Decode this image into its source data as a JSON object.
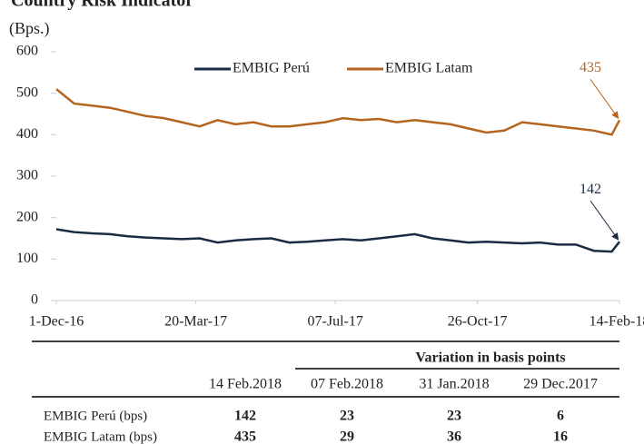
{
  "chart_data": {
    "type": "line",
    "title": "Country Risk Indicator",
    "subtitle": "(Bps.)",
    "x": [
      "2016-12-01",
      "2016-12-15",
      "2016-12-29",
      "2017-01-12",
      "2017-01-26",
      "2017-02-09",
      "2017-02-23",
      "2017-03-09",
      "2017-03-23",
      "2017-04-06",
      "2017-04-20",
      "2017-05-04",
      "2017-05-18",
      "2017-06-01",
      "2017-06-15",
      "2017-06-29",
      "2017-07-13",
      "2017-07-27",
      "2017-08-10",
      "2017-08-24",
      "2017-09-07",
      "2017-09-21",
      "2017-10-05",
      "2017-10-19",
      "2017-11-02",
      "2017-11-16",
      "2017-11-30",
      "2017-12-14",
      "2017-12-28",
      "2018-01-11",
      "2018-01-25",
      "2018-02-08",
      "2018-02-14"
    ],
    "series": [
      {
        "name": "EMBIG Perú",
        "color": "#1a2b44",
        "values": [
          172,
          165,
          162,
          160,
          155,
          152,
          150,
          148,
          150,
          140,
          145,
          148,
          150,
          140,
          142,
          145,
          148,
          145,
          150,
          155,
          160,
          150,
          145,
          140,
          142,
          140,
          138,
          140,
          135,
          135,
          120,
          118,
          142
        ]
      },
      {
        "name": "EMBIG Latam",
        "color": "#b5651d",
        "values": [
          510,
          475,
          470,
          465,
          455,
          445,
          440,
          430,
          420,
          435,
          425,
          430,
          420,
          420,
          425,
          430,
          440,
          435,
          438,
          430,
          435,
          430,
          425,
          415,
          405,
          410,
          430,
          425,
          420,
          415,
          410,
          400,
          435
        ]
      }
    ],
    "annotations": [
      {
        "text": "142",
        "series": 0
      },
      {
        "text": "435",
        "series": 1
      }
    ],
    "xlim": [
      "2016-12-01",
      "2018-02-14"
    ],
    "xticks": [
      {
        "value": "2016-12-01",
        "label": "1-Dec-16"
      },
      {
        "value": "2017-03-20",
        "label": "20-Mar-17"
      },
      {
        "value": "2017-07-07",
        "label": "07-Jul-17"
      },
      {
        "value": "2017-10-26",
        "label": "26-Oct-17"
      },
      {
        "value": "2018-02-14",
        "label": "14-Feb-18"
      }
    ],
    "ylim": [
      0,
      600
    ],
    "yticks": [
      0,
      100,
      200,
      300,
      400,
      500,
      600
    ],
    "legend": "top"
  },
  "table": {
    "header": "Variation in basis points",
    "columns": [
      "14 Feb.2018",
      "07 Feb.2018",
      "31 Jan.2018",
      "29 Dec.2017"
    ],
    "rows": [
      {
        "label": "EMBIG Perú (bps)",
        "values": [
          142,
          23,
          23,
          6
        ]
      },
      {
        "label": "EMBIG Latam (bps)",
        "values": [
          435,
          29,
          36,
          16
        ]
      }
    ]
  }
}
